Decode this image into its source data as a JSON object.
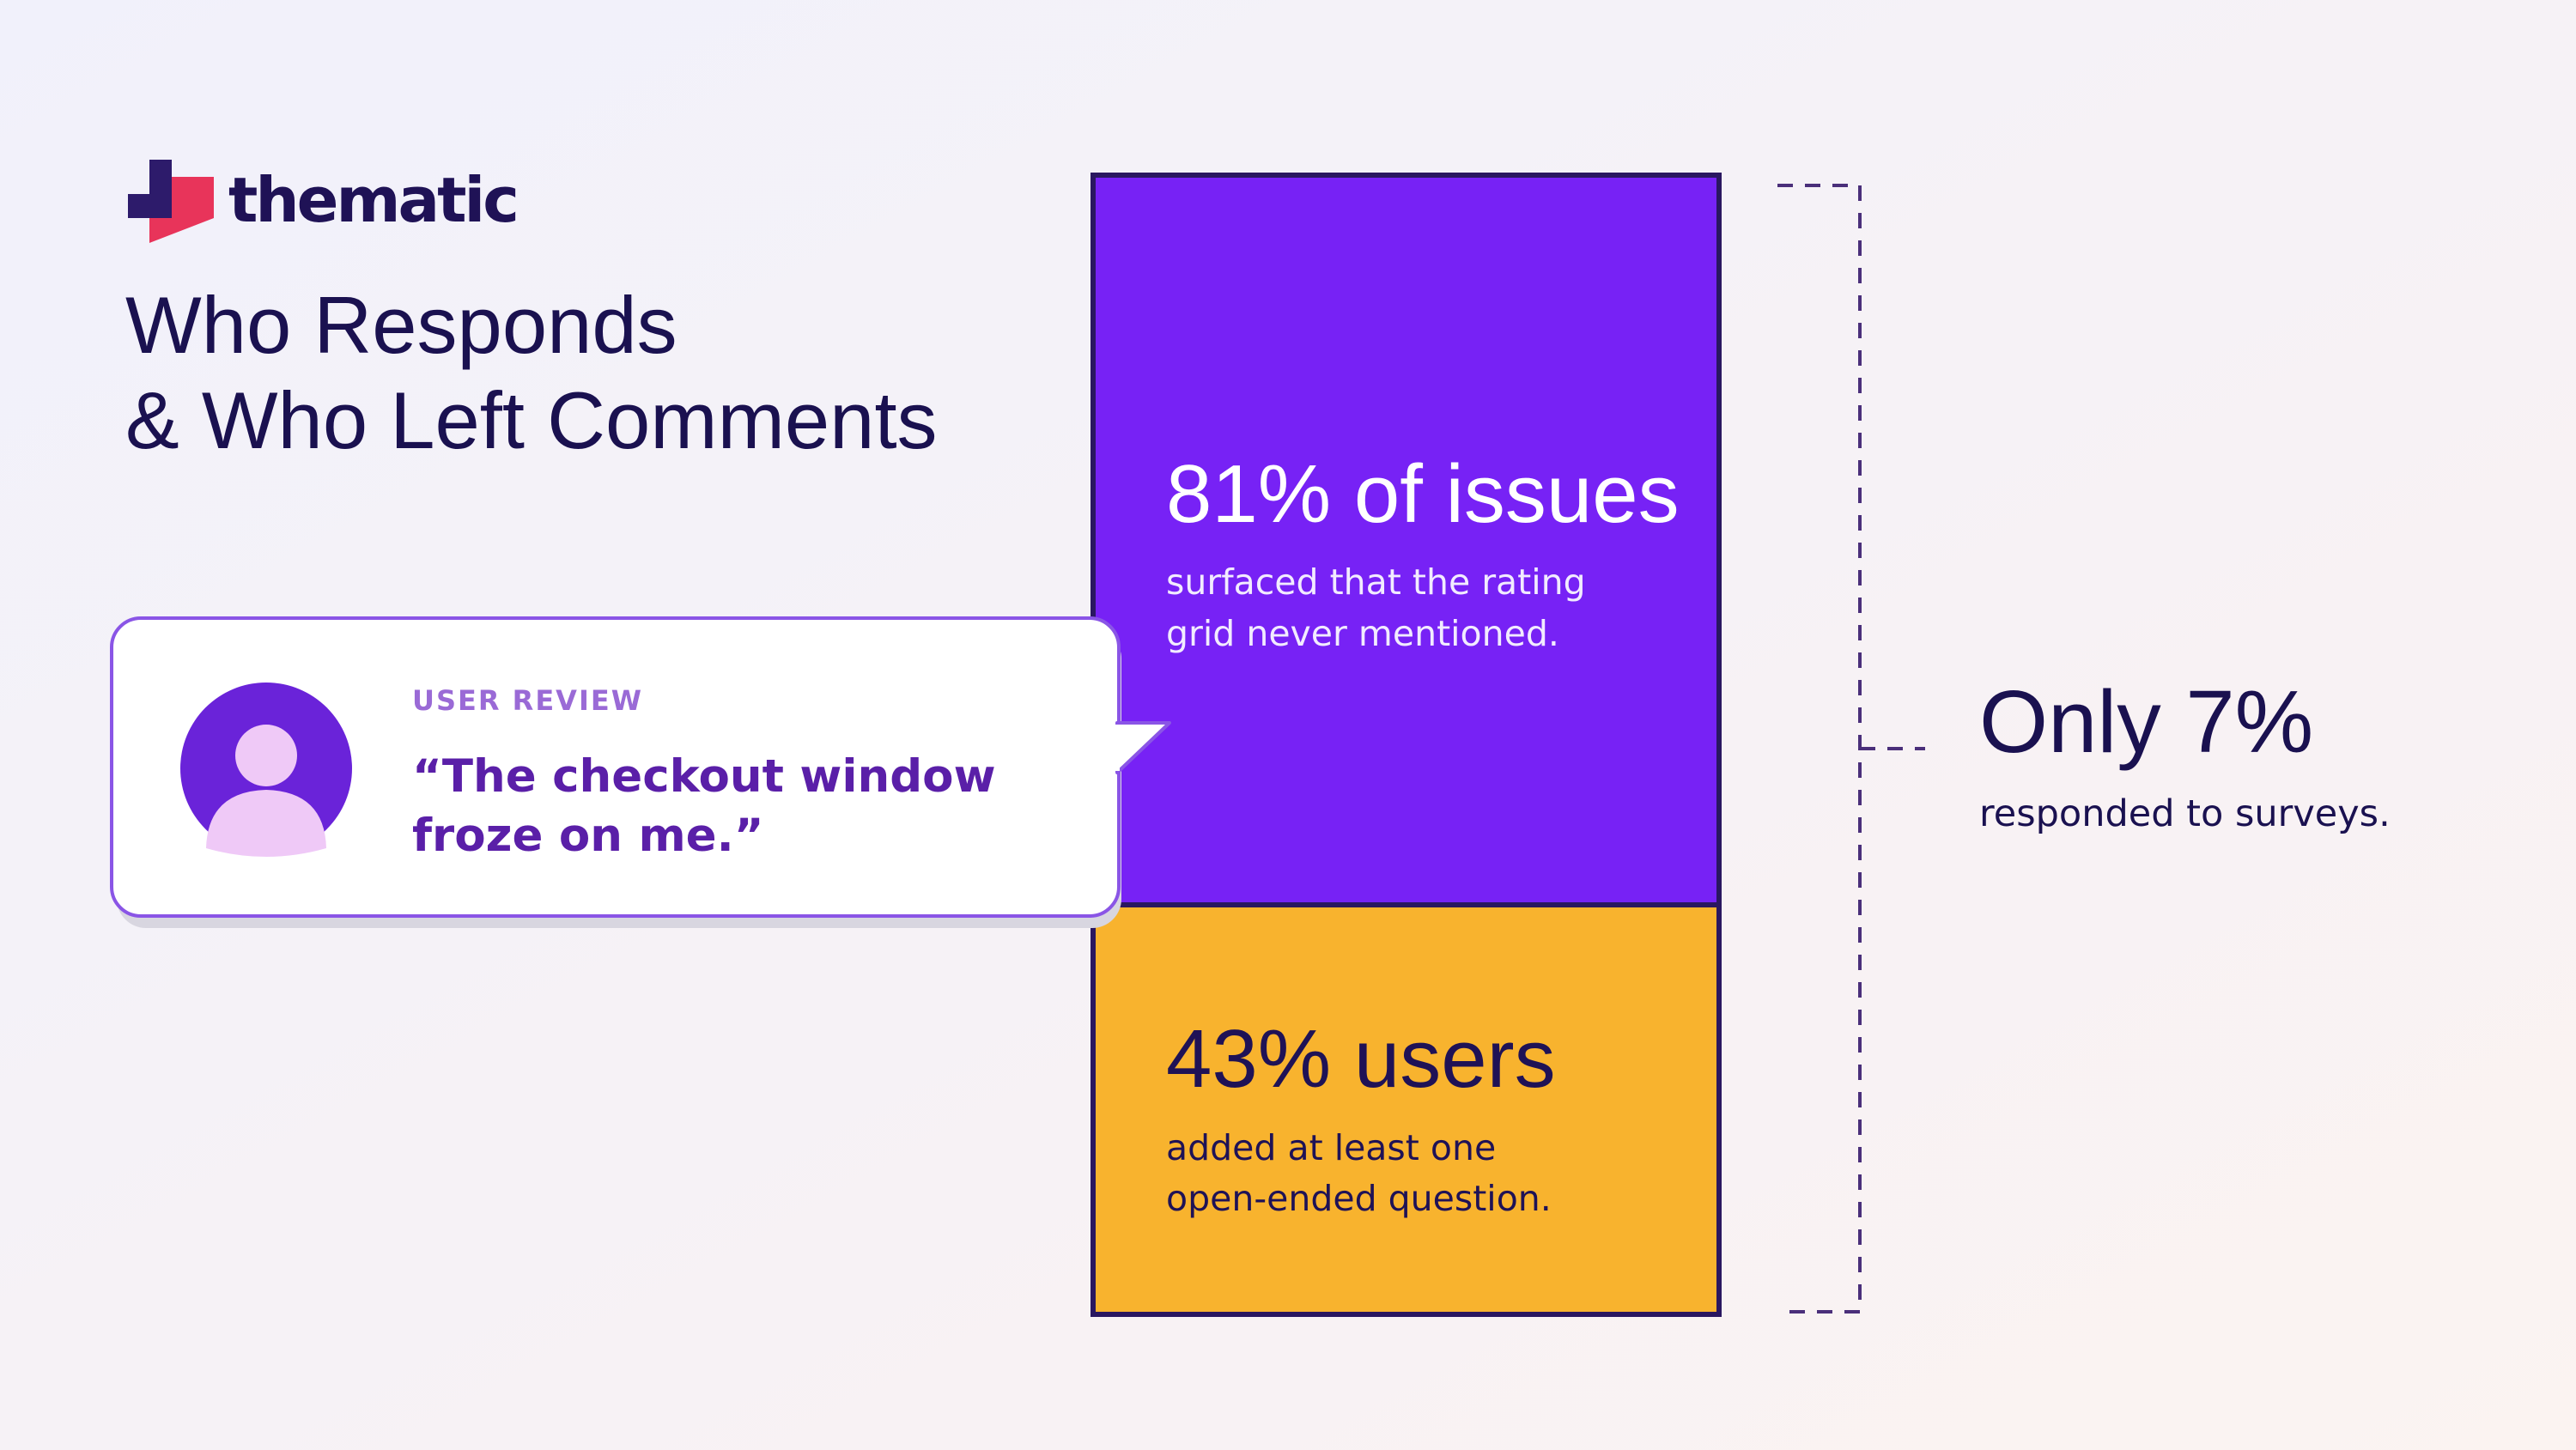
{
  "logo": {
    "text": "thematic"
  },
  "header": {
    "title_lines": [
      "Who Responds",
      "& Who Left Comments"
    ]
  },
  "review": {
    "label": "USER REVIEW",
    "quote_lines": [
      "“The checkout window",
      "froze on me.”"
    ]
  },
  "blocks": [
    {
      "headline": "81% of issues",
      "lines": [
        "surfaced that the rating",
        "grid never mentioned."
      ]
    },
    {
      "headline": "43% users",
      "lines": [
        "added at least one",
        "open-ended question."
      ]
    }
  ],
  "summary": {
    "headline": "Only 7%",
    "line": "responded to surveys."
  }
}
